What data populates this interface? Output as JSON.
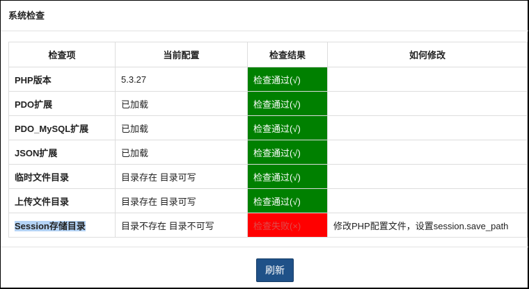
{
  "title": "系统检查",
  "table": {
    "headers": [
      "检查项",
      "当前配置",
      "检查结果",
      "如何修改"
    ],
    "rows": [
      {
        "item": "PHP版本",
        "config": "5.3.27",
        "result": "检查通过(√)",
        "status": "pass",
        "fix": ""
      },
      {
        "item": "PDO扩展",
        "config": "已加载",
        "result": "检查通过(√)",
        "status": "pass",
        "fix": ""
      },
      {
        "item": "PDO_MySQL扩展",
        "config": "已加载",
        "result": "检查通过(√)",
        "status": "pass",
        "fix": ""
      },
      {
        "item": "JSON扩展",
        "config": "已加载",
        "result": "检查通过(√)",
        "status": "pass",
        "fix": ""
      },
      {
        "item": "临时文件目录",
        "config": "目录存在 目录可写",
        "result": "检查通过(√)",
        "status": "pass",
        "fix": ""
      },
      {
        "item": "上传文件目录",
        "config": "目录存在 目录可写",
        "result": "检查通过(√)",
        "status": "pass",
        "fix": ""
      },
      {
        "item": "Session存储目录",
        "config": "目录不存在 目录不可写",
        "result": "检查失败(×)",
        "status": "fail",
        "fix": "修改PHP配置文件，设置session.save_path"
      }
    ]
  },
  "refresh_label": "刷新",
  "colors": {
    "pass": "#008000",
    "fail": "#ff0000",
    "button": "#1f5188"
  }
}
